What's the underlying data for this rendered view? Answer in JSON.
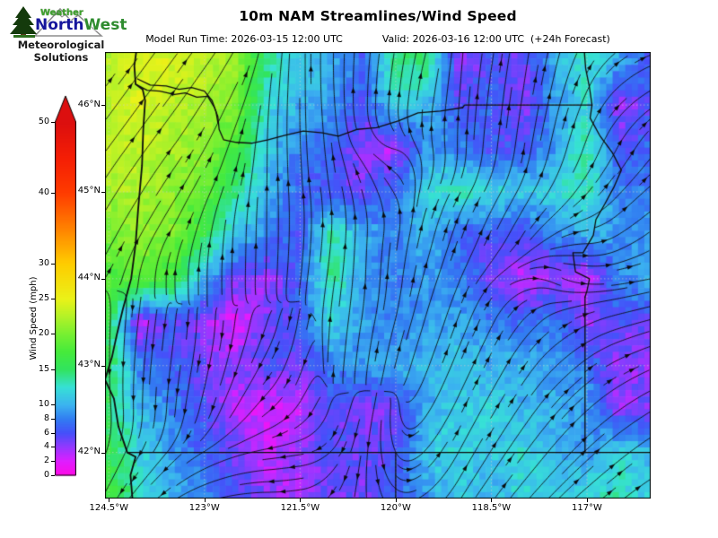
{
  "header": {
    "title": "10m NAM Streamlines/Wind Speed",
    "model_run": "Model Run Time: 2026-03-15 12:00 UTC",
    "valid": "Valid: 2026-03-16 12:00 UTC  (+24h Forecast)"
  },
  "logo": {
    "brand_top": "Weather",
    "brand_main_1": "North",
    "brand_main_2": "West",
    "tagline_1": "Meteorological",
    "tagline_2": "Solutions"
  },
  "colorbar": {
    "label": "Wind Speed (mph)",
    "min": 0,
    "max": 50,
    "extend": "max",
    "ticks": [
      0,
      2,
      4,
      6,
      8,
      10,
      15,
      20,
      25,
      30,
      40,
      50
    ],
    "stops": [
      [
        0,
        "#ff0ae6"
      ],
      [
        2,
        "#e01eff"
      ],
      [
        4,
        "#9638ff"
      ],
      [
        6,
        "#4650fa"
      ],
      [
        8,
        "#327df2"
      ],
      [
        10,
        "#3cb4f0"
      ],
      [
        12.5,
        "#37e1d7"
      ],
      [
        15,
        "#32e45f"
      ],
      [
        17.5,
        "#46eb3c"
      ],
      [
        20,
        "#78f032"
      ],
      [
        22.5,
        "#b4f228"
      ],
      [
        25,
        "#ebf219"
      ],
      [
        30,
        "#ffcd00"
      ],
      [
        35,
        "#ff8200"
      ],
      [
        40,
        "#ff3c00"
      ],
      [
        45,
        "#f51e05"
      ],
      [
        50,
        "#dc0f0f"
      ]
    ]
  },
  "axes": {
    "x_ticks": [
      {
        "label": "124.5°W",
        "lon": -124.5
      },
      {
        "label": "123°W",
        "lon": -123.0
      },
      {
        "label": "121.5°W",
        "lon": -121.5
      },
      {
        "label": "120°W",
        "lon": -120.0
      },
      {
        "label": "118.5°W",
        "lon": -118.5
      },
      {
        "label": "117°W",
        "lon": -117.0
      }
    ],
    "y_ticks": [
      {
        "label": "42°N",
        "lat": 42
      },
      {
        "label": "43°N",
        "lat": 43
      },
      {
        "label": "44°N",
        "lat": 44
      },
      {
        "label": "45°N",
        "lat": 45
      },
      {
        "label": "46°N",
        "lat": 46
      }
    ]
  },
  "chart_data": {
    "type": "heatmap",
    "subtype": "streamlines-over-windspeed",
    "model": "NAM",
    "field": "10m wind",
    "units": "mph",
    "extent": {
      "lon_min": -124.56,
      "lon_max": -116.0,
      "lat_min": 41.47,
      "lat_max": 46.61
    },
    "grid_lons": [
      -124.5,
      -124,
      -123.5,
      -123,
      -122.5,
      -122,
      -121.5,
      -121,
      -120.5,
      -120,
      -119.5,
      -119,
      -118.5,
      -118,
      -117.5,
      -117,
      -116.5,
      -116
    ],
    "grid_lats": [
      46.5,
      46,
      45.5,
      45,
      44.5,
      44,
      43.5,
      43,
      42.5,
      42,
      41.5
    ],
    "wind_speed_mph": [
      [
        23,
        24,
        24,
        23,
        21,
        14,
        11,
        10,
        7,
        14,
        15,
        4,
        6,
        5,
        10,
        13,
        9,
        7
      ],
      [
        23,
        24,
        23,
        22,
        20,
        12,
        10,
        9,
        6,
        12,
        10,
        6,
        7,
        4,
        9,
        12,
        4,
        6
      ],
      [
        23,
        23,
        22,
        21,
        17,
        11,
        8,
        7,
        4,
        3,
        9,
        8,
        6,
        6,
        9,
        14,
        6,
        7
      ],
      [
        22,
        22,
        21,
        19,
        14,
        10,
        7,
        6,
        5,
        8,
        12,
        13,
        12,
        11,
        12,
        13,
        8,
        8
      ],
      [
        20,
        21,
        20,
        16,
        11,
        8,
        6,
        14,
        10,
        8,
        10,
        7,
        6,
        6,
        8,
        10,
        9,
        9
      ],
      [
        18,
        19,
        17,
        10,
        5,
        4,
        7,
        14,
        9,
        8,
        9,
        8,
        5,
        3,
        4,
        3,
        8,
        10
      ],
      [
        16,
        3,
        6,
        4,
        2,
        5,
        7,
        12,
        9,
        8,
        9,
        10,
        8,
        7,
        8,
        4,
        6,
        5
      ],
      [
        15,
        8,
        7,
        5,
        4,
        6,
        5,
        8,
        9,
        10,
        10,
        11,
        10,
        10,
        9,
        8,
        4,
        4
      ],
      [
        15,
        10,
        8,
        6,
        3,
        2,
        3,
        6,
        4,
        5,
        10,
        11,
        12,
        10,
        10,
        9,
        4,
        5
      ],
      [
        16,
        12,
        9,
        7,
        5,
        3,
        4,
        6,
        5,
        6,
        11,
        12,
        11,
        12,
        10,
        9,
        12,
        10
      ],
      [
        17,
        13,
        10,
        8,
        6,
        4,
        3,
        5,
        5,
        7,
        9,
        11,
        10,
        12,
        11,
        12,
        13,
        11
      ]
    ],
    "wind_u": [
      [
        0.7,
        0.7,
        0.7,
        0.7,
        0.6,
        0.2,
        0,
        0,
        0.1,
        0.2,
        0.3,
        0.1,
        0.2,
        0.2,
        0.3,
        0.6,
        0.9,
        1
      ],
      [
        0.7,
        0.7,
        0.7,
        0.65,
        0.5,
        0.1,
        0,
        -0.1,
        0,
        0.1,
        0.2,
        0.1,
        0.15,
        0.2,
        0.3,
        0.5,
        0.8,
        0.9
      ],
      [
        0.7,
        0.7,
        0.7,
        0.6,
        0.35,
        0,
        -0.05,
        -0.15,
        -0.6,
        -0.8,
        -0.2,
        0,
        0.15,
        0.2,
        0.3,
        0.45,
        0.6,
        0.7
      ],
      [
        0.65,
        0.65,
        0.65,
        0.55,
        0.3,
        0,
        -0.1,
        -0.2,
        -0.35,
        -0.5,
        0.45,
        0.55,
        0.55,
        0.55,
        0.6,
        0.7,
        0.75,
        0.8
      ],
      [
        0.6,
        0.6,
        0.6,
        0.25,
        0.05,
        0,
        0.05,
        0.1,
        0.05,
        0.2,
        0.3,
        0.4,
        0.5,
        0.6,
        0.85,
        1,
        0.9,
        0.85
      ],
      [
        0.2,
        0.1,
        0,
        0,
        0,
        0.05,
        0.15,
        0.2,
        0.05,
        0.1,
        0.35,
        0.45,
        0.7,
        0.95,
        0.9,
        1,
        1,
        1
      ],
      [
        -0.05,
        -0.15,
        -0.1,
        0,
        -0.1,
        -0.3,
        -0.2,
        0.1,
        0.2,
        0.3,
        0.35,
        0.4,
        0.5,
        0.7,
        0.8,
        0.9,
        1,
        1
      ],
      [
        0,
        -0.1,
        -0.15,
        -0.2,
        -0.3,
        -0.5,
        -0.4,
        0.1,
        0.15,
        0.3,
        0.4,
        0.45,
        0.5,
        0.6,
        0.7,
        0.8,
        0.9,
        0.95
      ],
      [
        0.1,
        0,
        -0.1,
        -0.3,
        -0.5,
        -0.7,
        -0.5,
        -0.2,
        -0.25,
        0,
        0.5,
        0.5,
        0.55,
        0.6,
        0.65,
        0.75,
        0.85,
        0.9
      ],
      [
        -0.3,
        -0.4,
        -0.5,
        -0.7,
        -0.85,
        -0.95,
        -0.9,
        -0.4,
        -0.1,
        0.2,
        0.6,
        0.55,
        0.6,
        0.65,
        0.7,
        0.8,
        0.85,
        0.9
      ],
      [
        -0.4,
        -0.5,
        -0.6,
        -0.8,
        -0.9,
        -1,
        -0.95,
        -0.5,
        0,
        0.4,
        0.7,
        0.6,
        0.65,
        0.7,
        0.75,
        0.8,
        0.85,
        0.9
      ]
    ],
    "wind_v": [
      [
        0.7,
        0.7,
        0.7,
        0.7,
        0.8,
        1,
        1,
        1,
        1,
        1,
        0.9,
        1,
        1,
        1,
        0.95,
        0.8,
        0.5,
        0.3
      ],
      [
        0.7,
        0.7,
        0.7,
        0.75,
        0.85,
        1,
        1,
        1,
        1,
        1,
        1,
        1,
        1,
        1,
        0.95,
        0.85,
        0.6,
        0.45
      ],
      [
        0.7,
        0.7,
        0.7,
        0.8,
        0.9,
        1,
        1,
        1,
        0.4,
        0.15,
        0.8,
        1,
        1,
        1,
        0.95,
        0.9,
        0.8,
        0.7
      ],
      [
        0.75,
        0.75,
        0.75,
        0.8,
        0.95,
        1,
        1,
        1,
        0.9,
        0.6,
        0.8,
        0.75,
        0.75,
        0.75,
        0.7,
        0.6,
        0.6,
        0.5
      ],
      [
        0.8,
        0.8,
        0.8,
        0.95,
        1,
        1,
        1,
        1,
        1,
        0.95,
        0.9,
        0.85,
        0.8,
        0.7,
        0.35,
        0.05,
        0.4,
        0.45
      ],
      [
        0.25,
        0.6,
        0.9,
        1,
        1,
        1,
        1,
        1,
        1,
        0.95,
        0.85,
        0.8,
        0.55,
        0.15,
        -0.35,
        -0.1,
        0.1,
        0.15
      ],
      [
        -1,
        -0.9,
        -0.7,
        -0.5,
        -0.6,
        -0.7,
        -0.9,
        0.9,
        0.9,
        0.85,
        0.85,
        0.8,
        0.75,
        0.6,
        0.4,
        0.3,
        0.2,
        0.2
      ],
      [
        -1,
        -1,
        -0.9,
        -0.8,
        -0.7,
        -0.6,
        -0.9,
        1,
        0.95,
        0.9,
        0.8,
        0.75,
        0.7,
        0.65,
        0.5,
        0.45,
        0.35,
        0.3
      ],
      [
        -1,
        -1,
        -0.95,
        -0.8,
        -0.6,
        -0.45,
        -0.5,
        -0.5,
        -0.7,
        -0.6,
        0.6,
        0.75,
        0.7,
        0.65,
        0.55,
        0.5,
        0.45,
        0.4
      ],
      [
        -0.6,
        -0.5,
        -0.4,
        -0.3,
        -0.2,
        -0.1,
        -0.1,
        -0.3,
        -0.6,
        -0.3,
        0.5,
        0.75,
        0.7,
        0.65,
        0.6,
        0.55,
        0.5,
        0.45
      ],
      [
        -0.5,
        -0.4,
        -0.3,
        -0.2,
        -0.1,
        0,
        -0.1,
        -0.5,
        -0.7,
        -0.2,
        0.4,
        0.7,
        0.65,
        0.6,
        0.55,
        0.5,
        0.5,
        0.45
      ]
    ],
    "gridlines": {
      "lons": [
        -124.5,
        -123,
        -121.5,
        -120,
        -118.5,
        -117
      ],
      "lats": [
        42,
        43,
        44,
        45,
        46
      ]
    },
    "borders": {
      "coast": [
        [
          -124.13,
          41.47
        ],
        [
          -124.16,
          41.74
        ],
        [
          -124.08,
          41.95
        ],
        [
          -124.21,
          42.0
        ],
        [
          -124.35,
          42.3
        ],
        [
          -124.42,
          42.62
        ],
        [
          -124.56,
          42.84
        ],
        [
          -124.45,
          43.1
        ],
        [
          -124.38,
          43.34
        ],
        [
          -124.28,
          43.65
        ],
        [
          -124.15,
          44.0
        ],
        [
          -124.08,
          44.4
        ],
        [
          -124.04,
          44.8
        ],
        [
          -123.98,
          45.3
        ],
        [
          -123.96,
          45.72
        ],
        [
          -123.93,
          46.05
        ],
        [
          -123.97,
          46.18
        ],
        [
          -124.08,
          46.24
        ],
        [
          -124.1,
          46.45
        ],
        [
          -124.07,
          46.61
        ]
      ],
      "columbia_river": [
        [
          -124.08,
          46.24
        ],
        [
          -123.9,
          46.17
        ],
        [
          -123.7,
          46.16
        ],
        [
          -123.47,
          46.12
        ],
        [
          -123.3,
          46.14
        ],
        [
          -123.12,
          46.09
        ],
        [
          -122.95,
          46.1
        ],
        [
          -122.85,
          45.98
        ],
        [
          -122.79,
          45.87
        ],
        [
          -122.77,
          45.72
        ],
        [
          -122.7,
          45.6
        ],
        [
          -122.5,
          45.57
        ],
        [
          -122.25,
          45.56
        ],
        [
          -122.0,
          45.6
        ],
        [
          -121.75,
          45.65
        ],
        [
          -121.45,
          45.7
        ],
        [
          -121.15,
          45.68
        ],
        [
          -120.9,
          45.64
        ],
        [
          -120.6,
          45.72
        ],
        [
          -120.3,
          45.74
        ],
        [
          -119.95,
          45.82
        ],
        [
          -119.65,
          45.91
        ],
        [
          -119.3,
          45.93
        ],
        [
          -118.95,
          45.97
        ]
      ],
      "columbia_north_bank": [
        [
          -124.05,
          46.3
        ],
        [
          -123.85,
          46.23
        ],
        [
          -123.6,
          46.22
        ],
        [
          -123.4,
          46.18
        ],
        [
          -123.2,
          46.2
        ],
        [
          -123.0,
          46.16
        ],
        [
          -122.88,
          46.05
        ],
        [
          -122.82,
          45.93
        ],
        [
          -122.79,
          45.8
        ]
      ],
      "wa_or_46": [
        [
          -118.95,
          45.97
        ],
        [
          -118.92,
          46.0
        ],
        [
          -116.92,
          46.0
        ]
      ],
      "snake_river": [
        [
          -117.04,
          46.61
        ],
        [
          -117.02,
          46.42
        ],
        [
          -116.96,
          46.2
        ],
        [
          -116.92,
          46.0
        ],
        [
          -116.95,
          45.85
        ],
        [
          -116.8,
          45.65
        ],
        [
          -116.6,
          45.45
        ],
        [
          -116.46,
          45.25
        ],
        [
          -116.58,
          45.05
        ],
        [
          -116.72,
          44.86
        ],
        [
          -116.86,
          44.68
        ],
        [
          -116.9,
          44.5
        ],
        [
          -117.06,
          44.3
        ],
        [
          -117.22,
          44.3
        ],
        [
          -117.18,
          44.08
        ],
        [
          -116.96,
          44.0
        ],
        [
          -117.0,
          43.86
        ],
        [
          -117.03,
          43.79
        ]
      ],
      "or_id_straight": [
        [
          -117.03,
          43.79
        ],
        [
          -117.03,
          42.0
        ]
      ],
      "parallel_42": [
        [
          -124.21,
          42.0
        ],
        [
          -116.0,
          42.0
        ]
      ],
      "ca_nv": [
        [
          -120.0,
          42.0
        ],
        [
          -120.0,
          41.47
        ]
      ]
    }
  }
}
